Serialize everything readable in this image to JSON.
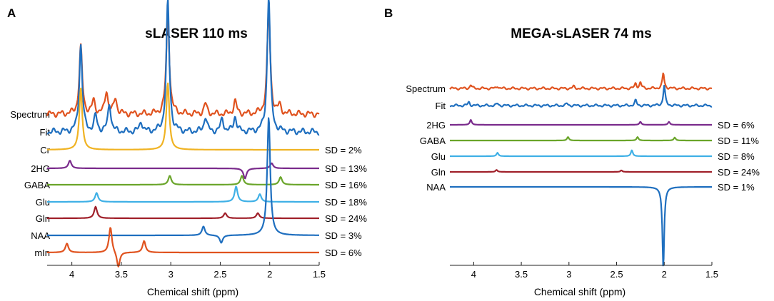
{
  "panels": [
    {
      "letter": "A",
      "title": "sLASER 110 ms",
      "xlabel": "Chemical shift (ppm)",
      "xticks": [
        "4",
        "3.5",
        "3",
        "2.5",
        "2",
        "1.5"
      ],
      "rows": [
        {
          "label": "Spectrum",
          "sd": null,
          "color": "#e0531f"
        },
        {
          "label": "Fit",
          "sd": null,
          "color": "#1f6fbf"
        },
        {
          "label": "Cr",
          "sd": "SD = 2%",
          "color": "#f0b323"
        },
        {
          "label": "2HG",
          "sd": "SD = 13%",
          "color": "#7a2b8c"
        },
        {
          "label": "GABA",
          "sd": "SD = 16%",
          "color": "#6aa52a"
        },
        {
          "label": "Glu",
          "sd": "SD = 18%",
          "color": "#3fb0e6"
        },
        {
          "label": "Gln",
          "sd": "SD = 24%",
          "color": "#a0202a"
        },
        {
          "label": "NAA",
          "sd": "SD = 3%",
          "color": "#1f6fbf"
        },
        {
          "label": "mIn",
          "sd": "SD = 6%",
          "color": "#e0531f"
        }
      ]
    },
    {
      "letter": "B",
      "title": "MEGA-sLASER 74 ms",
      "xlabel": "Chemical shift (ppm)",
      "xticks": [
        "4",
        "3.5",
        "3",
        "2.5",
        "2",
        "1.5"
      ],
      "rows": [
        {
          "label": "Spectrum",
          "sd": null,
          "color": "#e0531f"
        },
        {
          "label": "Fit",
          "sd": null,
          "color": "#1f6fbf"
        },
        {
          "label": "2HG",
          "sd": "SD = 6%",
          "color": "#7a2b8c"
        },
        {
          "label": "GABA",
          "sd": "SD = 11%",
          "color": "#6aa52a"
        },
        {
          "label": "Glu",
          "sd": "SD = 8%",
          "color": "#3fb0e6"
        },
        {
          "label": "Gln",
          "sd": "SD = 24%",
          "color": "#a0202a"
        },
        {
          "label": "NAA",
          "sd": "SD = 1%",
          "color": "#1f6fbf"
        }
      ]
    }
  ],
  "chart_data": [
    {
      "type": "line",
      "title": "sLASER 110 ms",
      "xlabel": "Chemical shift (ppm)",
      "ylabel": "",
      "xlim": [
        4.25,
        1.5
      ],
      "x_reversed": true,
      "series": [
        {
          "name": "Spectrum",
          "peaks": [
            [
              3.91,
              2.6
            ],
            [
              3.78,
              0.5
            ],
            [
              3.65,
              0.9
            ],
            [
              3.56,
              0.6
            ],
            [
              3.03,
              4.0
            ],
            [
              2.65,
              0.4
            ],
            [
              2.35,
              0.5
            ],
            [
              2.01,
              4.1
            ],
            [
              1.9,
              0.3
            ]
          ]
        },
        {
          "name": "Fit",
          "peaks": [
            [
              3.91,
              3.4
            ],
            [
              3.76,
              0.6
            ],
            [
              3.62,
              1.1
            ],
            [
              3.3,
              0.4
            ],
            [
              3.03,
              5.1
            ],
            [
              2.65,
              0.6
            ],
            [
              2.48,
              0.5
            ],
            [
              2.35,
              0.6
            ],
            [
              2.01,
              5.3
            ]
          ]
        },
        {
          "name": "Cr",
          "sd": "2%",
          "peaks": [
            [
              3.91,
              2.4
            ],
            [
              3.03,
              2.6
            ]
          ]
        },
        {
          "name": "2HG",
          "sd": "13%",
          "peaks": [
            [
              4.02,
              0.3
            ],
            [
              2.25,
              -0.4
            ],
            [
              1.98,
              0.2
            ]
          ]
        },
        {
          "name": "GABA",
          "sd": "16%",
          "peaks": [
            [
              3.01,
              0.35
            ],
            [
              2.28,
              0.35
            ],
            [
              1.89,
              0.3
            ]
          ]
        },
        {
          "name": "Glu",
          "sd": "18%",
          "peaks": [
            [
              3.75,
              0.35
            ],
            [
              2.34,
              0.6
            ],
            [
              2.1,
              0.3
            ]
          ]
        },
        {
          "name": "Gln",
          "sd": "24%",
          "peaks": [
            [
              3.76,
              0.45
            ],
            [
              2.45,
              0.2
            ],
            [
              2.12,
              0.2
            ]
          ]
        },
        {
          "name": "NAA",
          "sd": "3%",
          "peaks": [
            [
              2.67,
              0.35
            ],
            [
              2.49,
              -0.3
            ],
            [
              2.01,
              4.6
            ]
          ]
        },
        {
          "name": "mIn",
          "sd": "6%",
          "peaks": [
            [
              4.05,
              0.35
            ],
            [
              3.61,
              1.0
            ],
            [
              3.53,
              -0.6
            ],
            [
              3.27,
              0.45
            ]
          ]
        }
      ]
    },
    {
      "type": "line",
      "title": "MEGA-sLASER 74 ms",
      "xlabel": "Chemical shift (ppm)",
      "ylabel": "",
      "xlim": [
        4.25,
        1.5
      ],
      "x_reversed": true,
      "series": [
        {
          "name": "Spectrum",
          "peaks": [
            [
              4.03,
              0.35
            ],
            [
              3.75,
              0.25
            ],
            [
              2.95,
              0.2
            ],
            [
              2.3,
              0.5
            ],
            [
              2.25,
              0.6
            ],
            [
              2.01,
              1.5
            ]
          ]
        },
        {
          "name": "Fit",
          "peaks": [
            [
              4.05,
              0.35
            ],
            [
              3.75,
              0.2
            ],
            [
              3.02,
              0.2
            ],
            [
              2.3,
              0.5
            ],
            [
              2.0,
              2.0
            ]
          ]
        },
        {
          "name": "2HG",
          "sd": "6%",
          "peaks": [
            [
              4.03,
              0.5
            ],
            [
              2.25,
              0.3
            ],
            [
              1.95,
              0.3
            ]
          ]
        },
        {
          "name": "GABA",
          "sd": "11%",
          "peaks": [
            [
              3.01,
              0.35
            ],
            [
              2.28,
              0.35
            ],
            [
              1.89,
              0.3
            ]
          ]
        },
        {
          "name": "Glu",
          "sd": "8%",
          "peaks": [
            [
              3.75,
              0.35
            ],
            [
              2.34,
              0.6
            ]
          ]
        },
        {
          "name": "Gln",
          "sd": "24%",
          "peaks": [
            [
              3.76,
              0.2
            ],
            [
              2.45,
              0.15
            ]
          ]
        },
        {
          "name": "NAA",
          "sd": "1%",
          "peaks": [
            [
              2.01,
              -8.0
            ]
          ]
        }
      ]
    }
  ]
}
